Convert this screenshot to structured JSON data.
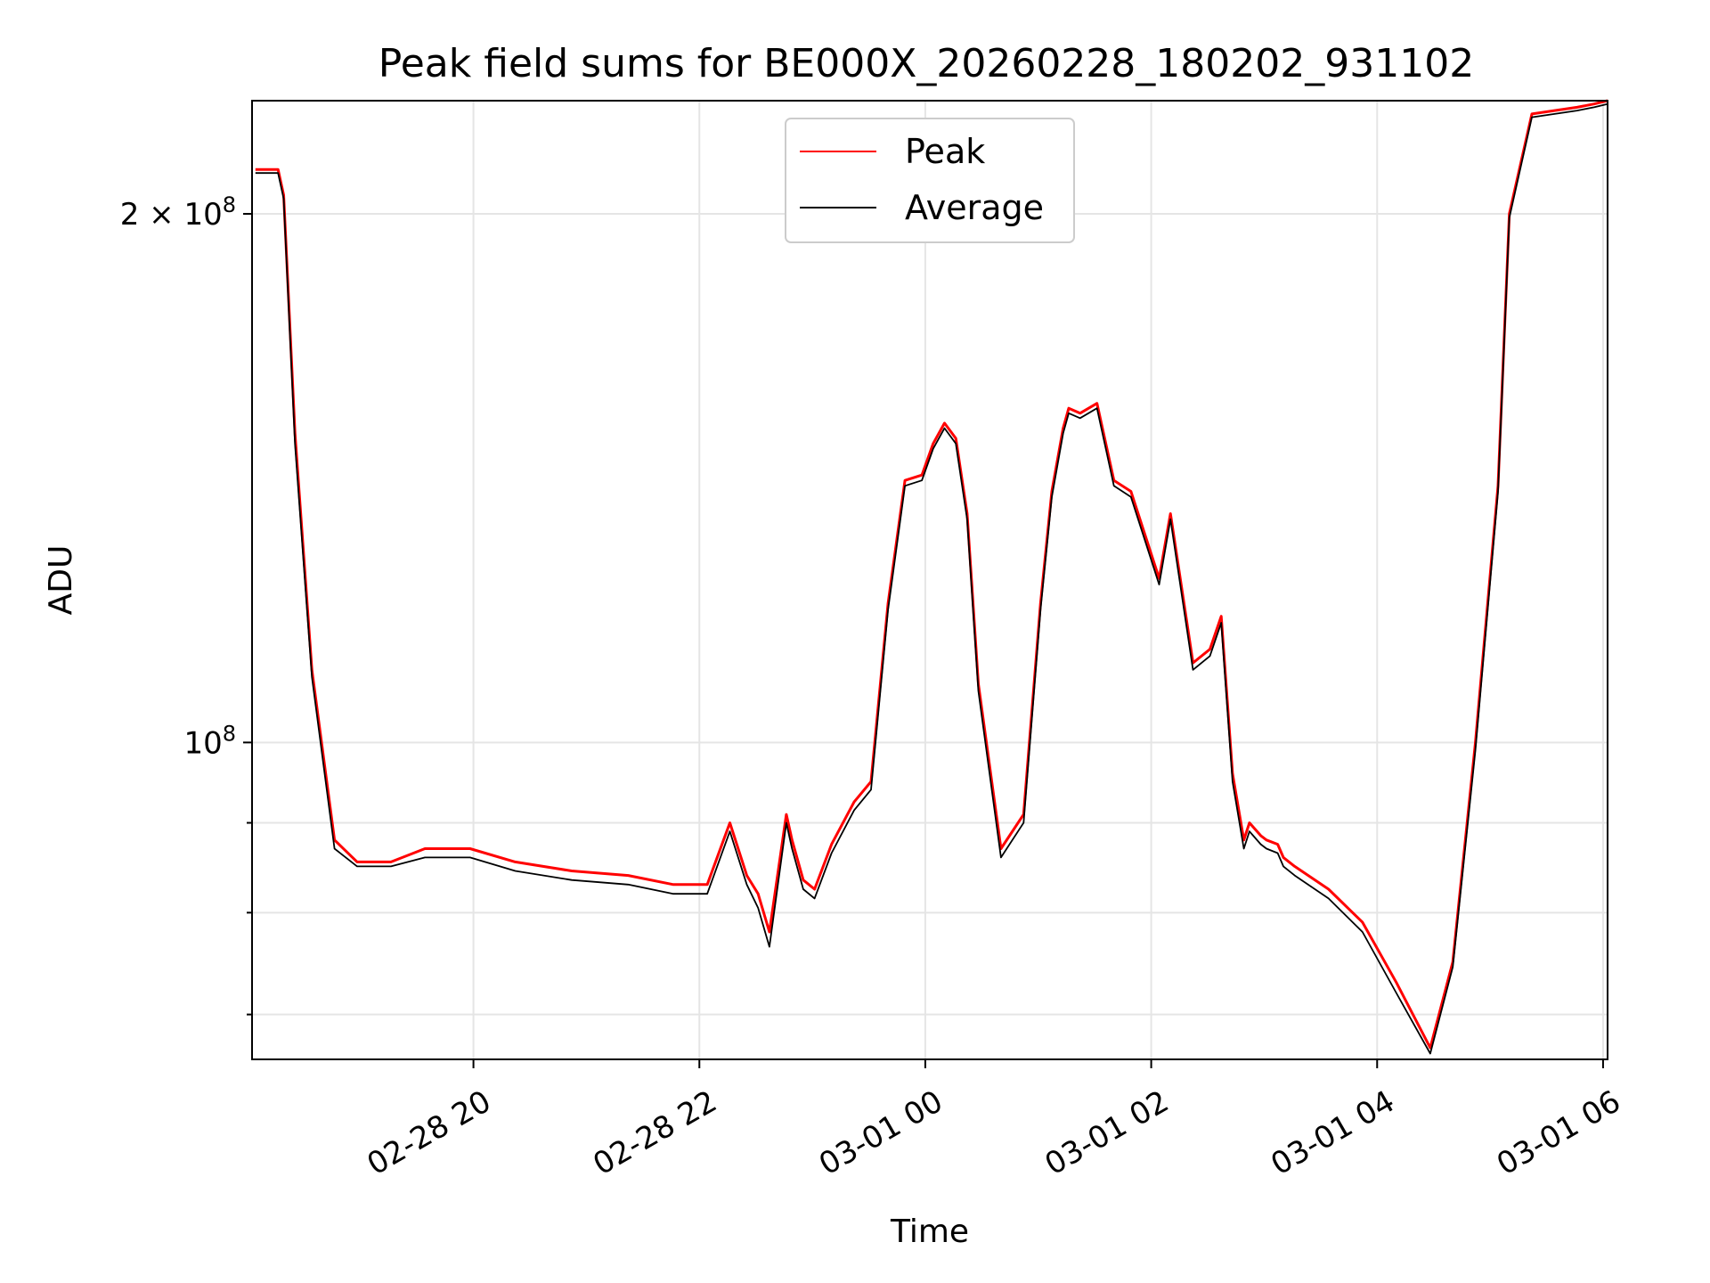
{
  "chart_data": {
    "type": "line",
    "title": "Peak field sums for BE000X_20260228_180202_931102",
    "xlabel": "Time",
    "ylabel": "ADU",
    "yscale": "log",
    "ylim": [
      66000000,
      232000000
    ],
    "xlim_hours": [
      -0.03,
      11.97
    ],
    "x_ticks": [
      {
        "hours": 1.93,
        "label": "02-28 20"
      },
      {
        "hours": 3.93,
        "label": "02-28 22"
      },
      {
        "hours": 5.93,
        "label": "03-01 00"
      },
      {
        "hours": 7.93,
        "label": "03-01 02"
      },
      {
        "hours": 9.93,
        "label": "03-01 04"
      },
      {
        "hours": 11.93,
        "label": "03-01 06"
      }
    ],
    "y_major_ticks": [
      {
        "value": 100000000,
        "base": "10",
        "exp": "8",
        "coef": ""
      },
      {
        "value": 200000000,
        "base": "10",
        "exp": "8",
        "coef": "2 × "
      }
    ],
    "y_minor_ticks": [
      70000000,
      80000000,
      90000000
    ],
    "grid": true,
    "legend": {
      "position": "top-center",
      "entries": [
        "Peak",
        "Average"
      ]
    },
    "colors": {
      "peak": "#ff0000",
      "average": "#000000"
    },
    "x_hours": [
      0.0,
      0.2,
      0.25,
      0.35,
      0.5,
      0.7,
      0.9,
      1.2,
      1.5,
      1.9,
      2.3,
      2.8,
      3.3,
      3.7,
      4.0,
      4.2,
      4.35,
      4.45,
      4.55,
      4.7,
      4.75,
      4.85,
      4.95,
      5.1,
      5.3,
      5.45,
      5.6,
      5.75,
      5.9,
      6.0,
      6.1,
      6.2,
      6.3,
      6.4,
      6.6,
      6.8,
      6.95,
      7.05,
      7.15,
      7.2,
      7.3,
      7.45,
      7.6,
      7.75,
      8.0,
      8.1,
      8.3,
      8.45,
      8.55,
      8.65,
      8.75,
      8.8,
      8.9,
      8.95,
      9.05,
      9.1,
      9.2,
      9.5,
      9.8,
      10.1,
      10.4,
      10.6,
      10.8,
      11.0,
      11.1,
      11.3,
      11.5,
      11.7,
      11.85,
      11.97
    ],
    "series": [
      {
        "name": "Peak",
        "values": [
          212000000,
          212000000,
          205000000,
          150000000,
          110000000,
          88000000,
          85500000,
          85500000,
          87000000,
          87000000,
          85500000,
          84500000,
          84000000,
          83000000,
          83000000,
          90000000,
          84000000,
          82000000,
          78000000,
          91000000,
          88000000,
          83500000,
          82500000,
          87500000,
          92500000,
          95000000,
          120000000,
          141000000,
          142000000,
          148000000,
          152000000,
          149000000,
          135000000,
          108000000,
          87000000,
          91000000,
          120000000,
          139000000,
          151000000,
          155000000,
          154000000,
          156000000,
          141000000,
          139000000,
          124000000,
          135000000,
          111000000,
          113000000,
          118000000,
          96000000,
          88000000,
          90000000,
          88500000,
          88000000,
          87500000,
          86000000,
          85000000,
          82500000,
          79000000,
          73000000,
          67000000,
          75000000,
          100000000,
          140000000,
          200000000,
          228000000,
          229000000,
          230000000,
          231000000,
          232000000
        ]
      },
      {
        "name": "Average",
        "values": [
          211000000,
          211000000,
          204000000,
          148000000,
          109000000,
          87000000,
          85000000,
          85000000,
          86000000,
          86000000,
          84500000,
          83500000,
          83000000,
          82000000,
          82000000,
          89000000,
          83000000,
          80500000,
          76500000,
          90000000,
          87000000,
          82500000,
          81500000,
          86500000,
          91500000,
          94000000,
          119000000,
          140000000,
          141000000,
          147000000,
          151000000,
          148000000,
          134000000,
          107000000,
          86000000,
          90000000,
          119000000,
          138000000,
          150000000,
          154000000,
          153000000,
          155000000,
          140000000,
          138000000,
          123000000,
          134000000,
          110000000,
          112000000,
          117000000,
          95000000,
          87000000,
          89000000,
          87500000,
          87000000,
          86500000,
          85000000,
          84000000,
          81500000,
          78000000,
          72000000,
          66500000,
          74500000,
          99000000,
          139000000,
          199000000,
          227000000,
          228000000,
          229000000,
          230000000,
          231000000
        ]
      }
    ]
  }
}
